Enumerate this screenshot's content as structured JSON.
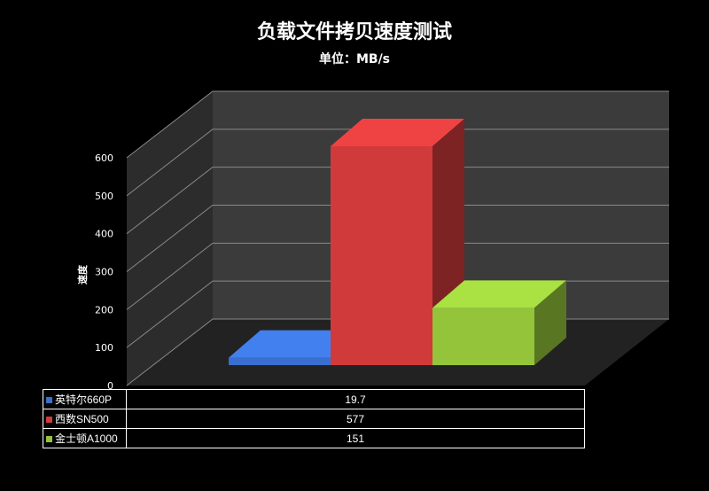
{
  "chart_data": {
    "type": "bar",
    "title": "负载文件拷贝速度测试",
    "subtitle": "单位：MB/s",
    "ylabel": "速度",
    "ylim": [
      0,
      600
    ],
    "yticks": [
      "0",
      "100",
      "200",
      "300",
      "400",
      "500",
      "600"
    ],
    "grid": true,
    "series": [
      {
        "name": "英特尔660P",
        "value": 19.7,
        "display": "19.7",
        "color": "#3a6fd0"
      },
      {
        "name": "西数SN500",
        "value": 577,
        "display": "577",
        "color": "#d03a3a"
      },
      {
        "name": "金士顿A1000",
        "value": 151,
        "display": "151",
        "color": "#94c43a"
      }
    ]
  }
}
